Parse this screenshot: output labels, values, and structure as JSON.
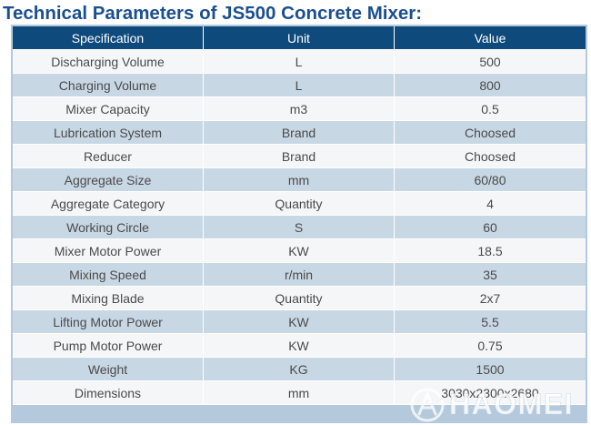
{
  "page": {
    "title": "Technical Parameters of JS500 Concrete Mixer:"
  },
  "table": {
    "headers": [
      "Specification",
      "Unit",
      "Value"
    ],
    "rows": [
      [
        "Discharging Volume",
        "L",
        "500"
      ],
      [
        "Charging Volume",
        "L",
        "800"
      ],
      [
        "Mixer Capacity",
        "m3",
        "0.5"
      ],
      [
        "Lubrication System",
        "Brand",
        "Choosed"
      ],
      [
        "Reducer",
        "Brand",
        "Choosed"
      ],
      [
        "Aggregate Size",
        "mm",
        "60/80"
      ],
      [
        "Aggregate Category",
        "Quantity",
        "4"
      ],
      [
        "Working Circle",
        "S",
        "60"
      ],
      [
        "Mixer Motor Power",
        "KW",
        "18.5"
      ],
      [
        "Mixing Speed",
        "r/min",
        "35"
      ],
      [
        "Mixing Blade",
        "Quantity",
        "2x7"
      ],
      [
        "Lifting Motor Power",
        "KW",
        "5.5"
      ],
      [
        "Pump Motor Power",
        "KW",
        "0.75"
      ],
      [
        "Weight",
        "KG",
        "1500"
      ],
      [
        "Dimensions",
        "mm",
        "3030x2300x2680"
      ]
    ]
  },
  "watermark": {
    "text": "HAOMEI"
  },
  "colors": {
    "title": "#1b4f8f",
    "header_bg": "#0f4a7c",
    "row_light": "#f4f6f8",
    "row_dark": "#c8d7e4",
    "text": "#4a4a4a"
  }
}
